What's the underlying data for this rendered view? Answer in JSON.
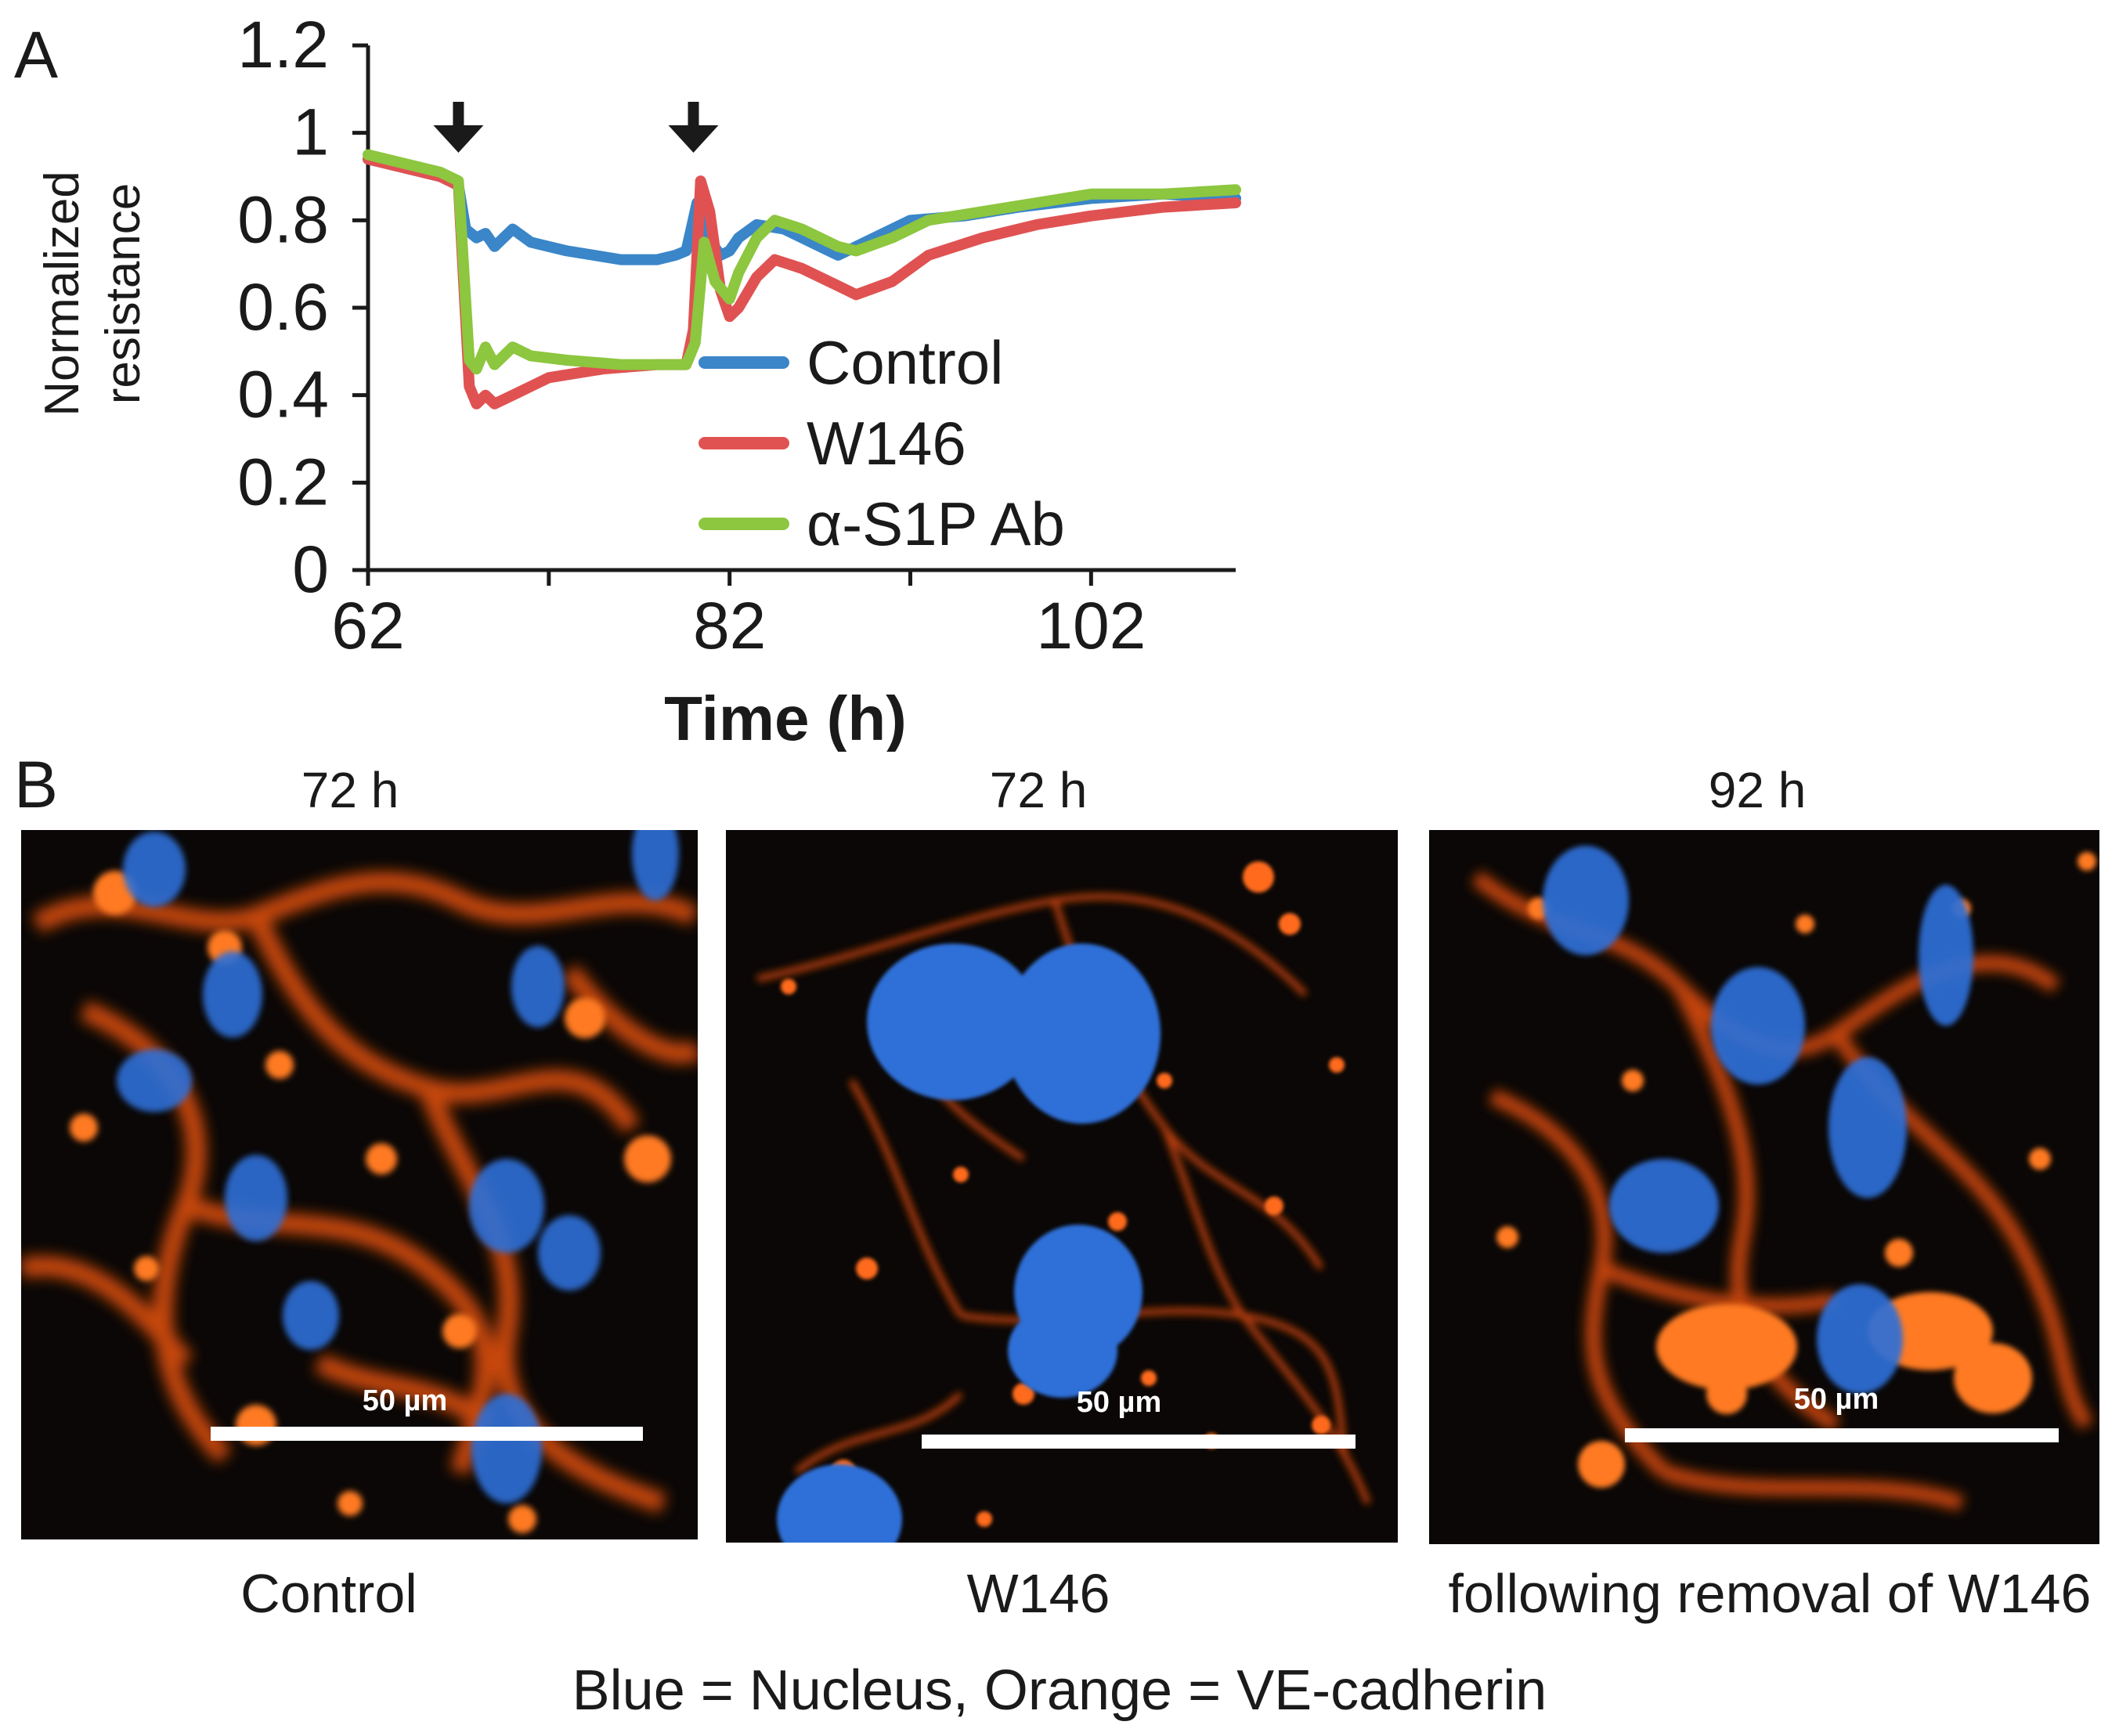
{
  "panel_a": {
    "letter": "A"
  },
  "panel_b": {
    "letter": "B"
  },
  "chart_data": {
    "type": "line",
    "xlabel": "Time (h)",
    "ylabel": "Normalized resistance",
    "ylabel_lines": [
      "Normalized",
      "resistance"
    ],
    "xlim": [
      62,
      110
    ],
    "ylim": [
      0,
      1.2
    ],
    "x_ticks": [
      62,
      82,
      102
    ],
    "y_ticks": [
      0,
      0.2,
      0.4,
      0.6,
      0.8,
      1,
      1.2
    ],
    "y_tick_labels": [
      "0",
      "0.2",
      "0.4",
      "0.6",
      "0.8",
      "1",
      "1.2"
    ],
    "grid": false,
    "legend_position": "lower-right",
    "arrows_at_x": [
      67,
      80
    ],
    "series": [
      {
        "name": "Control",
        "color": "#3a86c8",
        "points": [
          [
            62,
            0.94
          ],
          [
            64,
            0.92
          ],
          [
            66,
            0.9
          ],
          [
            67,
            0.88
          ],
          [
            67.4,
            0.78
          ],
          [
            68,
            0.76
          ],
          [
            68.5,
            0.77
          ],
          [
            69,
            0.74
          ],
          [
            70,
            0.78
          ],
          [
            71,
            0.75
          ],
          [
            73,
            0.73
          ],
          [
            76,
            0.71
          ],
          [
            78,
            0.71
          ],
          [
            79,
            0.72
          ],
          [
            79.6,
            0.73
          ],
          [
            80.2,
            0.84
          ],
          [
            80.8,
            0.76
          ],
          [
            81.5,
            0.72
          ],
          [
            82,
            0.73
          ],
          [
            82.5,
            0.76
          ],
          [
            83.5,
            0.79
          ],
          [
            85,
            0.78
          ],
          [
            87,
            0.74
          ],
          [
            88,
            0.72
          ],
          [
            90,
            0.76
          ],
          [
            92,
            0.8
          ],
          [
            95,
            0.81
          ],
          [
            98,
            0.83
          ],
          [
            102,
            0.85
          ],
          [
            106,
            0.86
          ],
          [
            110,
            0.85
          ]
        ]
      },
      {
        "name": "W146",
        "color": "#e05252",
        "points": [
          [
            62,
            0.94
          ],
          [
            64,
            0.92
          ],
          [
            66,
            0.9
          ],
          [
            67,
            0.88
          ],
          [
            67.6,
            0.42
          ],
          [
            68,
            0.38
          ],
          [
            68.5,
            0.4
          ],
          [
            69,
            0.38
          ],
          [
            70,
            0.4
          ],
          [
            71,
            0.42
          ],
          [
            72,
            0.44
          ],
          [
            75,
            0.46
          ],
          [
            78,
            0.47
          ],
          [
            79.6,
            0.47
          ],
          [
            80,
            0.55
          ],
          [
            80.4,
            0.89
          ],
          [
            80.9,
            0.82
          ],
          [
            81.5,
            0.64
          ],
          [
            82,
            0.58
          ],
          [
            82.5,
            0.6
          ],
          [
            83.5,
            0.67
          ],
          [
            84.5,
            0.71
          ],
          [
            86,
            0.69
          ],
          [
            88,
            0.65
          ],
          [
            89,
            0.63
          ],
          [
            91,
            0.66
          ],
          [
            93,
            0.72
          ],
          [
            96,
            0.76
          ],
          [
            99,
            0.79
          ],
          [
            102,
            0.81
          ],
          [
            106,
            0.83
          ],
          [
            110,
            0.84
          ]
        ]
      },
      {
        "name": "α-S1P Ab",
        "color": "#8dc63f",
        "points": [
          [
            62,
            0.95
          ],
          [
            64,
            0.93
          ],
          [
            66,
            0.91
          ],
          [
            67,
            0.89
          ],
          [
            67.6,
            0.48
          ],
          [
            68,
            0.46
          ],
          [
            68.5,
            0.51
          ],
          [
            69,
            0.47
          ],
          [
            70,
            0.51
          ],
          [
            71,
            0.49
          ],
          [
            73,
            0.48
          ],
          [
            76,
            0.47
          ],
          [
            79.6,
            0.47
          ],
          [
            80.1,
            0.52
          ],
          [
            80.6,
            0.75
          ],
          [
            81.2,
            0.66
          ],
          [
            82,
            0.62
          ],
          [
            82.5,
            0.68
          ],
          [
            83.5,
            0.76
          ],
          [
            84.5,
            0.8
          ],
          [
            86,
            0.78
          ],
          [
            88,
            0.74
          ],
          [
            89,
            0.73
          ],
          [
            91,
            0.76
          ],
          [
            93,
            0.8
          ],
          [
            96,
            0.82
          ],
          [
            99,
            0.84
          ],
          [
            102,
            0.86
          ],
          [
            106,
            0.86
          ],
          [
            110,
            0.87
          ]
        ]
      }
    ]
  },
  "micrographs": [
    {
      "time": "72 h",
      "caption": "Control",
      "scale": "50 µm"
    },
    {
      "time": "72 h",
      "caption": "W146",
      "scale": "50 µm"
    },
    {
      "time": "92 h",
      "caption": "following removal of W146",
      "scale": "50 µm"
    }
  ],
  "bottom_legend": "Blue = Nucleus, Orange = VE-cadherin",
  "colors": {
    "nucleus": "#2f6fd8",
    "cadherin": "#ff6a1a",
    "background": "#0a0706"
  }
}
